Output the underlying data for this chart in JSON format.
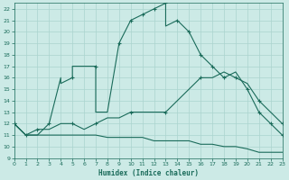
{
  "xlabel": "Humidex (Indice chaleur)",
  "xlim": [
    0,
    23
  ],
  "ylim": [
    9,
    22.5
  ],
  "bg_color": "#cceae6",
  "grid_color": "#aad4ce",
  "line_color": "#1a6b5a",
  "xticks": [
    0,
    1,
    2,
    3,
    4,
    5,
    6,
    7,
    8,
    9,
    10,
    11,
    12,
    13,
    14,
    15,
    16,
    17,
    18,
    19,
    20,
    21,
    22,
    23
  ],
  "yticks": [
    9,
    10,
    11,
    12,
    13,
    14,
    15,
    16,
    17,
    18,
    19,
    20,
    21,
    22
  ],
  "line1_x": [
    0,
    1,
    2,
    3,
    4,
    4,
    5,
    5,
    6,
    7,
    7,
    8,
    9,
    10,
    11,
    12,
    13,
    13,
    14,
    15,
    16,
    17,
    18,
    19,
    20,
    21,
    22,
    23
  ],
  "line1_y": [
    12,
    11,
    11,
    12,
    16,
    15.5,
    16,
    17,
    17,
    17,
    13,
    13,
    19,
    21,
    21.5,
    22,
    22.5,
    20.5,
    21,
    20,
    18,
    17,
    16,
    16.5,
    15,
    13,
    12,
    11
  ],
  "line1_markers_x": [
    0,
    1,
    3,
    5,
    7,
    9,
    10,
    11,
    12,
    13,
    14,
    15,
    16,
    17,
    18,
    20,
    21,
    22,
    23
  ],
  "line1_markers_y": [
    12,
    11,
    12,
    16,
    17,
    19,
    21,
    21.5,
    22,
    22.5,
    21,
    20,
    18,
    17,
    16,
    15,
    13,
    12,
    11
  ],
  "line2_x": [
    0,
    1,
    2,
    3,
    4,
    5,
    6,
    7,
    8,
    9,
    10,
    11,
    12,
    13,
    14,
    15,
    16,
    17,
    18,
    19,
    20,
    21,
    22,
    23
  ],
  "line2_y": [
    12,
    11,
    11.5,
    11.5,
    12,
    12,
    11.5,
    12,
    12.5,
    12.5,
    13,
    13,
    13,
    13,
    14,
    15,
    16,
    16,
    16.5,
    16,
    15.5,
    14,
    13,
    12
  ],
  "line2_markers_x": [
    0,
    2,
    5,
    7,
    10,
    13,
    16,
    19,
    21,
    23
  ],
  "line2_markers_y": [
    12,
    11.5,
    12,
    12,
    13,
    13,
    16,
    16,
    14,
    12
  ],
  "line3_x": [
    0,
    1,
    2,
    3,
    4,
    5,
    6,
    7,
    8,
    9,
    10,
    11,
    12,
    13,
    14,
    15,
    16,
    17,
    18,
    19,
    20,
    21,
    22,
    23
  ],
  "line3_y": [
    12,
    11,
    11,
    11,
    11,
    11,
    11,
    11,
    10.8,
    10.8,
    10.8,
    10.8,
    10.5,
    10.5,
    10.5,
    10.5,
    10.2,
    10.2,
    10,
    10,
    9.8,
    9.5,
    9.5,
    9.5
  ]
}
